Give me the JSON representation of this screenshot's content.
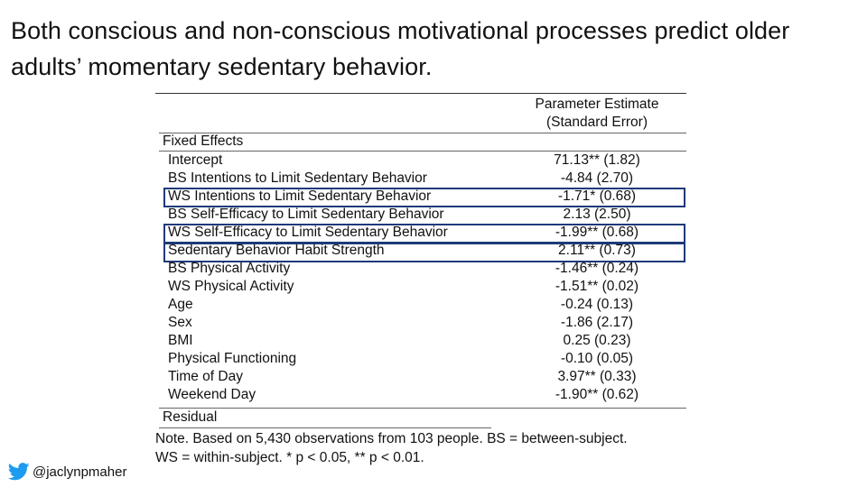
{
  "title": "Both conscious and non-conscious motivational processes predict older adults’ momentary sedentary behavior.",
  "table": {
    "header_line1": "Parameter Estimate",
    "header_line2": "(Standard Error)",
    "fixed_label": "Fixed Effects",
    "rows": [
      {
        "label": "Intercept",
        "value": "71.13** (1.82)"
      },
      {
        "label": "BS Intentions to Limit Sedentary Behavior",
        "value": "-4.84 (2.70)"
      },
      {
        "label": "WS Intentions to Limit Sedentary Behavior",
        "value": "-1.71* (0.68)"
      },
      {
        "label": "BS Self-Efficacy to Limit Sedentary Behavior",
        "value": "2.13 (2.50)"
      },
      {
        "label": "WS Self-Efficacy to Limit Sedentary Behavior",
        "value": "-1.99** (0.68)"
      },
      {
        "label": "Sedentary Behavior Habit Strength",
        "value": "2.11** (0.73)"
      },
      {
        "label": "BS Physical Activity",
        "value": "-1.46** (0.24)"
      },
      {
        "label": "WS Physical Activity",
        "value": "-1.51** (0.02)"
      },
      {
        "label": "Age",
        "value": "-0.24 (0.13)"
      },
      {
        "label": "Sex",
        "value": "-1.86 (2.17)"
      },
      {
        "label": "BMI",
        "value": "0.25 (0.23)"
      },
      {
        "label": "Physical Functioning",
        "value": "-0.10 (0.05)"
      },
      {
        "label": "Time of Day",
        "value": "3.97** (0.33)"
      },
      {
        "label": "Weekend Day",
        "value": "-1.90** (0.62)"
      }
    ],
    "residual_label": "Residual",
    "highlight_color": "#1f3a7a"
  },
  "note_line1": "Note. Based on 5,430 observations from 103 people. BS = between-subject.",
  "note_line2": "WS = within-subject. * p < 0.05, ** p < 0.01.",
  "handle": "@jaclynpmaher",
  "icons": {
    "social": "twitter-bird-icon"
  }
}
